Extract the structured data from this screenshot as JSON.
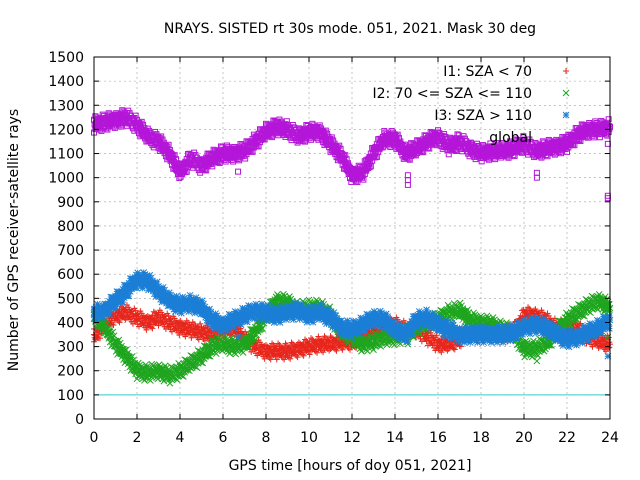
{
  "chart_data": {
    "type": "scatter",
    "title": "NRAYS. SISTED rt 30s mode. 051, 2021. Mask 30 deg",
    "xlabel": "GPS time [hours of doy 051, 2021]",
    "ylabel": "Number of GPS receiver-satellite rays",
    "xlim": [
      0,
      24
    ],
    "ylim": [
      0,
      1500
    ],
    "xticks": [
      0,
      2,
      4,
      6,
      8,
      10,
      12,
      14,
      16,
      18,
      20,
      22,
      24
    ],
    "yticks": [
      0,
      100,
      200,
      300,
      400,
      500,
      600,
      700,
      800,
      900,
      1000,
      1100,
      1200,
      1300,
      1400,
      1500
    ],
    "grid": true,
    "legend_position": "top-right",
    "reference_line": {
      "y": 100,
      "color": "#33cccc"
    },
    "series": [
      {
        "name": "I1: SZA < 70",
        "marker": "+",
        "color": "#e8261c",
        "x": [
          0,
          0.5,
          1,
          1.5,
          2,
          2.5,
          3,
          3.5,
          4,
          4.5,
          5,
          5.5,
          6,
          6.5,
          7,
          7.5,
          8,
          8.5,
          9,
          9.5,
          10,
          10.5,
          11,
          11.5,
          12,
          12.5,
          13,
          13.5,
          14,
          14.5,
          15,
          15.5,
          16,
          16.5,
          17,
          17.5,
          18,
          18.5,
          19,
          19.5,
          20,
          20.5,
          21,
          21.5,
          22,
          22.5,
          23,
          23.5,
          24
        ],
        "y": [
          340,
          390,
          430,
          440,
          420,
          400,
          420,
          400,
          380,
          370,
          360,
          350,
          370,
          380,
          330,
          300,
          280,
          280,
          280,
          290,
          300,
          310,
          310,
          320,
          320,
          340,
          360,
          380,
          390,
          370,
          370,
          340,
          310,
          310,
          330,
          360,
          360,
          360,
          350,
          360,
          430,
          430,
          410,
          380,
          380,
          370,
          340,
          320,
          310
        ],
        "outliers": [
          [
            0,
            350
          ],
          [
            20.7,
            395
          ],
          [
            23.9,
            375
          ],
          [
            23.9,
            330
          ]
        ]
      },
      {
        "name": "I2: 70 <= SZA <= 110",
        "marker": "x",
        "color": "#1fa51f",
        "x": [
          0,
          0.5,
          1,
          1.5,
          2,
          2.5,
          3,
          3.5,
          4,
          4.5,
          5,
          5.5,
          6,
          6.5,
          7,
          7.5,
          8,
          8.5,
          9,
          9.5,
          10,
          10.5,
          11,
          11.5,
          12,
          12.5,
          13,
          13.5,
          14,
          14.5,
          15,
          15.5,
          16,
          16.5,
          17,
          17.5,
          18,
          18.5,
          19,
          19.5,
          20,
          20.5,
          21,
          21.5,
          22,
          22.5,
          23,
          23.5,
          24
        ],
        "y": [
          430,
          380,
          310,
          260,
          200,
          190,
          200,
          180,
          200,
          230,
          260,
          300,
          310,
          300,
          310,
          360,
          430,
          490,
          480,
          450,
          460,
          460,
          430,
          360,
          340,
          310,
          320,
          340,
          340,
          350,
          380,
          400,
          410,
          440,
          450,
          410,
          400,
          390,
          370,
          360,
          290,
          290,
          310,
          360,
          410,
          440,
          470,
          490,
          460
        ],
        "outliers": [
          [
            14.6,
            310
          ],
          [
            20.6,
            240
          ],
          [
            23.9,
            340
          ]
        ]
      },
      {
        "name": "I3: SZA > 110",
        "marker": "*",
        "color": "#1c7fd6",
        "x": [
          0,
          0.5,
          1,
          1.5,
          2,
          2.5,
          3,
          3.5,
          4,
          4.5,
          5,
          5.5,
          6,
          6.5,
          7,
          7.5,
          8,
          8.5,
          9,
          9.5,
          10,
          10.5,
          11,
          11.5,
          12,
          12.5,
          13,
          13.5,
          14,
          14.5,
          15,
          15.5,
          16,
          16.5,
          17,
          17.5,
          18,
          18.5,
          19,
          19.5,
          20,
          20.5,
          21,
          21.5,
          22,
          22.5,
          23,
          23.5,
          24
        ],
        "y": [
          440,
          450,
          490,
          530,
          580,
          570,
          530,
          490,
          470,
          480,
          460,
          410,
          390,
          410,
          430,
          450,
          440,
          430,
          440,
          450,
          430,
          440,
          420,
          380,
          370,
          390,
          420,
          410,
          370,
          350,
          410,
          420,
          390,
          370,
          350,
          350,
          350,
          350,
          350,
          360,
          380,
          390,
          380,
          350,
          330,
          340,
          360,
          380,
          410
        ],
        "outliers": [
          [
            6.7,
            340
          ],
          [
            14.6,
            320
          ],
          [
            23.9,
            260
          ]
        ]
      },
      {
        "name": "global",
        "marker": "square",
        "color": "#b416d8",
        "x": [
          0,
          0.5,
          1,
          1.5,
          2,
          2.5,
          3,
          3.5,
          4,
          4.5,
          5,
          5.5,
          6,
          6.5,
          7,
          7.5,
          8,
          8.5,
          9,
          9.5,
          10,
          10.5,
          11,
          11.5,
          12,
          12.5,
          13,
          13.5,
          14,
          14.5,
          15,
          15.5,
          16,
          16.5,
          17,
          17.5,
          18,
          18.5,
          19,
          19.5,
          20,
          20.5,
          21,
          21.5,
          22,
          22.5,
          23,
          23.5,
          24
        ],
        "y": [
          1220,
          1230,
          1240,
          1250,
          1220,
          1170,
          1150,
          1100,
          1020,
          1080,
          1050,
          1080,
          1100,
          1100,
          1110,
          1150,
          1190,
          1210,
          1200,
          1170,
          1190,
          1190,
          1140,
          1090,
          1010,
          1020,
          1100,
          1160,
          1160,
          1100,
          1120,
          1150,
          1170,
          1130,
          1150,
          1120,
          1100,
          1110,
          1110,
          1120,
          1140,
          1110,
          1120,
          1130,
          1140,
          1180,
          1200,
          1200,
          1210
        ],
        "outliers": [
          [
            6.7,
            1025
          ],
          [
            14.6,
            1010
          ],
          [
            14.6,
            990
          ],
          [
            14.6,
            970
          ],
          [
            20.6,
            1020
          ],
          [
            20.6,
            1000
          ],
          [
            23.9,
            1140
          ],
          [
            23.9,
            925
          ],
          [
            23.9,
            915
          ]
        ]
      }
    ]
  }
}
